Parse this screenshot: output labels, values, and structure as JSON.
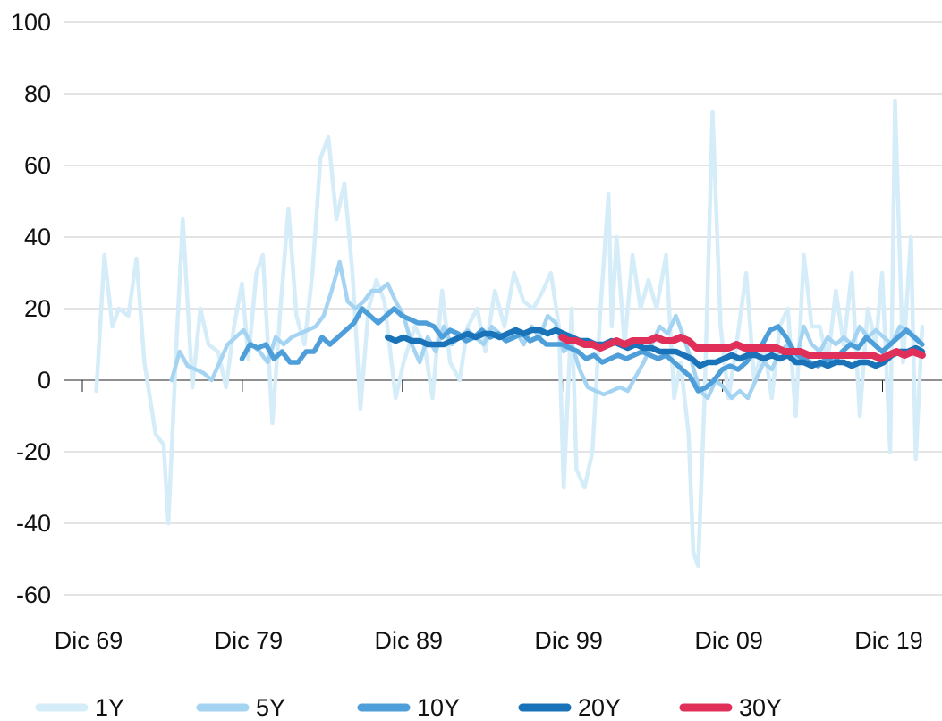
{
  "chart_data": {
    "type": "line",
    "title": "",
    "xlabel": "",
    "ylabel": "",
    "ylim": [
      -60,
      100
    ],
    "y_ticks": [
      "100",
      "80",
      "60",
      "40",
      "20",
      "0",
      "-20",
      "-40",
      "-60"
    ],
    "x_tick_labels": [
      "Dic 69",
      "Dic 79",
      "Dic 89",
      "Dic 99",
      "Dic 09",
      "Dic 19"
    ],
    "x_ticks_years": [
      1969.92,
      1979.92,
      1989.92,
      1999.92,
      2009.92,
      2019.92
    ],
    "grid": "horizontal",
    "legend_position": "bottom",
    "series": [
      {
        "name": "1Y",
        "color": "#d5ecf9",
        "x": [
          1970.8,
          1971.3,
          1971.8,
          1972.2,
          1972.8,
          1973.3,
          1973.8,
          1974.5,
          1975.0,
          1975.3,
          1975.8,
          1976.2,
          1976.8,
          1977.3,
          1977.8,
          1978.4,
          1978.9,
          1979.4,
          1979.9,
          1980.3,
          1980.8,
          1981.2,
          1981.8,
          1982.3,
          1982.8,
          1983.3,
          1983.8,
          1984.3,
          1984.8,
          1985.3,
          1985.8,
          1986.3,
          1986.8,
          1987.0,
          1987.3,
          1987.8,
          1988.3,
          1988.8,
          1989.5,
          1990.0,
          1990.7,
          1991.3,
          1991.8,
          1992.4,
          1992.9,
          1993.5,
          1994.0,
          1994.6,
          1995.1,
          1995.7,
          1996.3,
          1996.9,
          1997.5,
          1998.1,
          1998.7,
          1999.2,
          1999.7,
          2000.0,
          2000.5,
          2000.8,
          2001.3,
          2001.8,
          2002.3,
          2002.8,
          2003.0,
          2003.3,
          2003.8,
          2004.3,
          2004.8,
          2005.3,
          2005.8,
          2006.4,
          2006.9,
          2007.3,
          2007.8,
          2008.1,
          2008.4,
          2008.8,
          2009.3,
          2009.8,
          2010.3,
          2010.8,
          2011.4,
          2011.9,
          2012.5,
          2013.0,
          2013.5,
          2014.0,
          2014.5,
          2015.0,
          2015.5,
          2016.0,
          2016.5,
          2017.0,
          2017.5,
          2018.0,
          2018.5,
          2019.0,
          2019.5,
          2019.9,
          2020.4,
          2020.7,
          2021.2,
          2021.7,
          2022.0,
          2022.4
        ],
        "y": [
          -3,
          35,
          15,
          20,
          18,
          34,
          5,
          -15,
          -18,
          -40,
          10,
          45,
          -2,
          20,
          10,
          8,
          -2,
          15,
          27,
          6,
          30,
          35,
          -12,
          20,
          48,
          18,
          10,
          30,
          62,
          68,
          45,
          55,
          30,
          15,
          -8,
          20,
          28,
          22,
          -5,
          5,
          15,
          10,
          -5,
          25,
          5,
          0,
          15,
          20,
          8,
          25,
          15,
          30,
          22,
          20,
          25,
          30,
          15,
          -30,
          20,
          -25,
          -30,
          -20,
          20,
          52,
          15,
          40,
          10,
          35,
          20,
          28,
          20,
          35,
          -5,
          5,
          -15,
          -48,
          -52,
          -5,
          75,
          15,
          -5,
          10,
          30,
          0,
          10,
          -5,
          15,
          20,
          -10,
          35,
          15,
          15,
          5,
          25,
          10,
          30,
          -10,
          20,
          10,
          30,
          -20,
          78,
          5,
          40,
          -22,
          15
        ]
      },
      {
        "name": "5Y",
        "color": "#a5d4f2",
        "x": [
          1975.5,
          1976.0,
          1976.5,
          1977.0,
          1977.5,
          1978.0,
          1978.5,
          1979.0,
          1979.5,
          1980.0,
          1980.5,
          1981.0,
          1981.5,
          1982.0,
          1982.5,
          1983.0,
          1983.5,
          1984.0,
          1984.5,
          1985.0,
          1985.5,
          1986.0,
          1986.5,
          1987.0,
          1987.5,
          1988.0,
          1988.5,
          1989.0,
          1989.5,
          1990.0,
          1990.5,
          1991.0,
          1991.5,
          1992.0,
          1992.5,
          1993.0,
          1993.5,
          1994.0,
          1994.5,
          1995.0,
          1995.5,
          1996.0,
          1996.5,
          1997.0,
          1997.5,
          1998.0,
          1998.5,
          1999.0,
          1999.5,
          2000.0,
          2000.5,
          2001.0,
          2001.5,
          2002.0,
          2002.5,
          2003.0,
          2003.5,
          2004.0,
          2004.5,
          2005.0,
          2005.5,
          2006.0,
          2006.5,
          2007.0,
          2007.5,
          2008.0,
          2008.5,
          2009.0,
          2009.5,
          2010.0,
          2010.5,
          2011.0,
          2011.5,
          2012.0,
          2012.5,
          2013.0,
          2013.5,
          2014.0,
          2014.5,
          2015.0,
          2015.5,
          2016.0,
          2016.5,
          2017.0,
          2017.5,
          2018.0,
          2018.5,
          2019.0,
          2019.5,
          2020.0,
          2020.5,
          2021.0,
          2021.5,
          2022.0,
          2022.4
        ],
        "y": [
          0,
          8,
          4,
          3,
          2,
          0,
          5,
          10,
          12,
          14,
          10,
          8,
          5,
          12,
          10,
          12,
          13,
          14,
          15,
          18,
          25,
          33,
          22,
          20,
          22,
          25,
          25,
          27,
          22,
          18,
          10,
          5,
          12,
          8,
          15,
          10,
          12,
          14,
          12,
          10,
          15,
          13,
          12,
          14,
          10,
          15,
          12,
          18,
          16,
          8,
          10,
          3,
          -2,
          -3,
          -4,
          -3,
          -2,
          -3,
          1,
          5,
          10,
          15,
          13,
          18,
          12,
          5,
          -3,
          -5,
          0,
          -2,
          -5,
          -3,
          -5,
          0,
          5,
          3,
          8,
          10,
          5,
          15,
          10,
          8,
          12,
          10,
          12,
          10,
          15,
          12,
          14,
          12,
          10,
          15,
          14,
          12,
          10
        ]
      },
      {
        "name": "10Y",
        "color": "#4e9fd9",
        "x": [
          1979.9,
          1980.4,
          1980.9,
          1981.4,
          1981.9,
          1982.4,
          1982.9,
          1983.4,
          1983.9,
          1984.4,
          1984.9,
          1985.4,
          1985.9,
          1986.4,
          1986.9,
          1987.4,
          1987.9,
          1988.4,
          1988.9,
          1989.4,
          1989.9,
          1990.4,
          1990.9,
          1991.4,
          1991.9,
          1992.4,
          1992.9,
          1993.4,
          1993.9,
          1994.4,
          1994.9,
          1995.4,
          1995.9,
          1996.4,
          1996.9,
          1997.4,
          1997.9,
          1998.4,
          1998.9,
          1999.4,
          1999.9,
          2000.4,
          2000.9,
          2001.4,
          2001.9,
          2002.4,
          2002.9,
          2003.4,
          2003.9,
          2004.4,
          2004.9,
          2005.4,
          2005.9,
          2006.4,
          2006.9,
          2007.4,
          2007.9,
          2008.4,
          2008.9,
          2009.4,
          2009.9,
          2010.4,
          2010.9,
          2011.4,
          2011.9,
          2012.4,
          2012.9,
          2013.4,
          2013.9,
          2014.4,
          2014.9,
          2015.4,
          2015.9,
          2016.4,
          2016.9,
          2017.4,
          2017.9,
          2018.4,
          2018.9,
          2019.4,
          2019.9,
          2020.4,
          2020.9,
          2021.4,
          2021.9,
          2022.4
        ],
        "y": [
          6,
          10,
          9,
          10,
          6,
          8,
          5,
          5,
          8,
          8,
          12,
          10,
          12,
          14,
          16,
          20,
          18,
          16,
          18,
          20,
          18,
          17,
          16,
          16,
          15,
          12,
          14,
          13,
          11,
          12,
          14,
          12,
          13,
          11,
          12,
          13,
          11,
          12,
          10,
          10,
          10,
          9,
          8,
          6,
          7,
          5,
          6,
          7,
          6,
          7,
          8,
          7,
          6,
          7,
          5,
          3,
          1,
          -3,
          -2,
          0,
          3,
          4,
          3,
          5,
          8,
          10,
          14,
          15,
          12,
          8,
          6,
          5,
          4,
          6,
          5,
          8,
          10,
          9,
          12,
          10,
          8,
          10,
          12,
          14,
          12,
          10
        ]
      },
      {
        "name": "20Y",
        "color": "#1a73b8",
        "x": [
          1989.0,
          1989.5,
          1990.0,
          1990.5,
          1991.0,
          1991.5,
          1992.0,
          1992.5,
          1993.0,
          1993.5,
          1994.0,
          1994.5,
          1995.0,
          1995.5,
          1996.0,
          1996.5,
          1997.0,
          1997.5,
          1998.0,
          1998.5,
          1999.0,
          1999.5,
          2000.0,
          2000.5,
          2001.0,
          2001.5,
          2002.0,
          2002.5,
          2003.0,
          2003.5,
          2004.0,
          2004.5,
          2005.0,
          2005.5,
          2006.0,
          2006.5,
          2007.0,
          2007.5,
          2008.0,
          2008.5,
          2009.0,
          2009.5,
          2010.0,
          2010.5,
          2011.0,
          2011.5,
          2012.0,
          2012.5,
          2013.0,
          2013.5,
          2014.0,
          2014.5,
          2015.0,
          2015.5,
          2016.0,
          2016.5,
          2017.0,
          2017.5,
          2018.0,
          2018.5,
          2019.0,
          2019.5,
          2020.0,
          2020.5,
          2021.0,
          2021.5,
          2022.0,
          2022.4
        ],
        "y": [
          12,
          11,
          12,
          11,
          11,
          10,
          10,
          10,
          11,
          12,
          13,
          12,
          13,
          13,
          12,
          13,
          14,
          13,
          14,
          14,
          13,
          14,
          13,
          12,
          11,
          11,
          10,
          10,
          11,
          10,
          9,
          10,
          9,
          9,
          8,
          8,
          8,
          7,
          6,
          4,
          5,
          5,
          6,
          7,
          6,
          7,
          7,
          6,
          7,
          6,
          7,
          5,
          5,
          4,
          5,
          4,
          5,
          5,
          4,
          5,
          5,
          4,
          5,
          7,
          8,
          8,
          9,
          8
        ]
      },
      {
        "name": "30Y",
        "color": "#e0305a",
        "x": [
          1999.9,
          2000.3,
          2000.8,
          2001.3,
          2001.8,
          2002.3,
          2002.8,
          2003.3,
          2003.8,
          2004.3,
          2004.8,
          2005.3,
          2005.8,
          2006.3,
          2006.8,
          2007.3,
          2007.8,
          2008.3,
          2008.8,
          2009.3,
          2009.8,
          2010.3,
          2010.8,
          2011.3,
          2011.8,
          2012.3,
          2012.8,
          2013.3,
          2013.8,
          2014.3,
          2014.8,
          2015.3,
          2015.8,
          2016.3,
          2016.8,
          2017.3,
          2017.8,
          2018.3,
          2018.8,
          2019.3,
          2019.8,
          2020.3,
          2020.8,
          2021.3,
          2021.8,
          2022.4
        ],
        "y": [
          12,
          11,
          11,
          10,
          10,
          9,
          10,
          11,
          10,
          11,
          11,
          11,
          12,
          11,
          11,
          12,
          11,
          9,
          9,
          9,
          9,
          9,
          10,
          9,
          9,
          9,
          9,
          9,
          8,
          8,
          8,
          7,
          7,
          7,
          7,
          7,
          7,
          7,
          7,
          7,
          6,
          7,
          8,
          7,
          8,
          7
        ]
      }
    ]
  }
}
